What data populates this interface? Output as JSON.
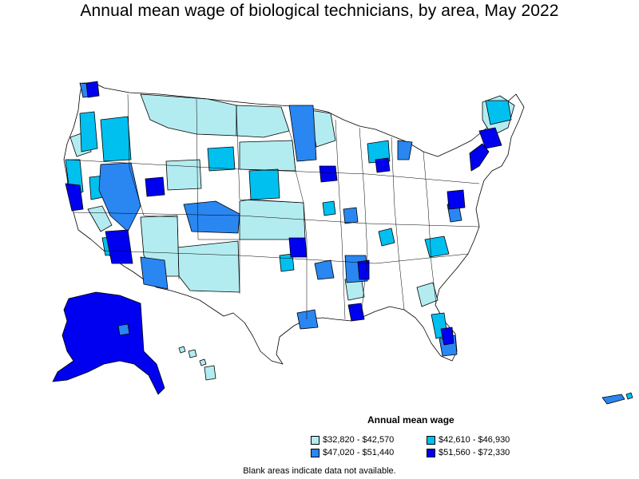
{
  "title": "Annual mean wage of biological technicians, by area, May 2022",
  "legend": {
    "title": "Annual mean wage",
    "items": [
      {
        "label": "$32,820 - $42,570",
        "color": "#b3ecf0"
      },
      {
        "label": "$42,610 - $46,930",
        "color": "#00c0f0"
      },
      {
        "label": "$47,020 - $51,440",
        "color": "#2a86f0"
      },
      {
        "label": "$51,560 - $72,330",
        "color": "#0000f0"
      }
    ]
  },
  "footnote": "Blank areas indicate data not available.",
  "colors": {
    "no_data": "#ffffff",
    "border": "#000000"
  }
}
